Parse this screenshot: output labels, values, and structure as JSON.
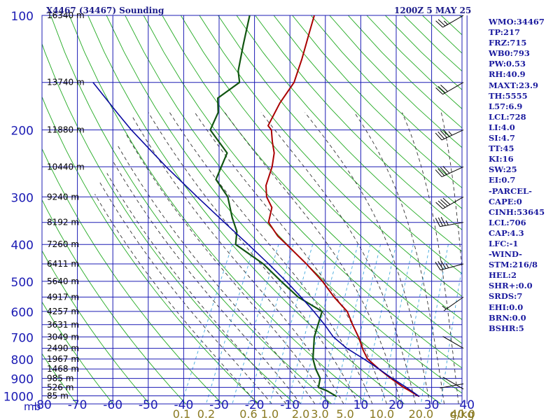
{
  "title": "X4467 (34467) Sounding",
  "timestamp": "1200Z  5 MAY 25",
  "colors": {
    "grid": "#1c1cb4",
    "dry_adiabat": "#22aa22",
    "moist_adiabat": "#333333",
    "mixing_ratio": "#44aadd",
    "temperature": "#aa0000",
    "dewpoint": "#115511",
    "parcel": "#0a0aa0",
    "axis_text": "#1c1cb4",
    "mixing_text": "#8a7a22"
  },
  "chart_data": {
    "type": "line",
    "pressure_labels": [
      "100",
      "200",
      "300",
      "400",
      "500",
      "600",
      "700",
      "800",
      "900",
      "1000"
    ],
    "pressure_unit": "mb",
    "temperature_labels": [
      "-80",
      "-70",
      "-60",
      "-50",
      "-40",
      "-30",
      "-20",
      "-10",
      "0",
      "10",
      "20",
      "30",
      "40"
    ],
    "mixing_ratio_labels": [
      "0.1",
      "0.2",
      "0.6",
      "1.0",
      "2.0",
      "3.0",
      "5.0",
      "10.0",
      "20.0",
      "40.0"
    ],
    "mixing_ratio_unit": "g/kg",
    "mixing_ratio_values": [
      0.1,
      0.2,
      0.6,
      1.0,
      2.0,
      3.0,
      5.0,
      10.0,
      20.0,
      40.0
    ],
    "height_labels": [
      {
        "p": 100,
        "label": "16340 m"
      },
      {
        "p": 150,
        "label": "13740 m"
      },
      {
        "p": 200,
        "label": "11880 m"
      },
      {
        "p": 250,
        "label": "10440 m"
      },
      {
        "p": 300,
        "label": "9240 m"
      },
      {
        "p": 350,
        "label": "8192 m"
      },
      {
        "p": 400,
        "label": "7260 m"
      },
      {
        "p": 450,
        "label": "6411 m"
      },
      {
        "p": 500,
        "label": "5640 m"
      },
      {
        "p": 550,
        "label": "4917 m"
      },
      {
        "p": 600,
        "label": "4257 m"
      },
      {
        "p": 650,
        "label": "3631 m"
      },
      {
        "p": 700,
        "label": "3049 m"
      },
      {
        "p": 750,
        "label": "2490 m"
      },
      {
        "p": 800,
        "label": "1967 m"
      },
      {
        "p": 850,
        "label": "1468 m"
      },
      {
        "p": 900,
        "label": "985 m"
      },
      {
        "p": 950,
        "label": "526 m"
      },
      {
        "p": 1000,
        "label": "85 m"
      }
    ],
    "series": [
      {
        "name": "temperature",
        "points": [
          [
            1004,
            24
          ],
          [
            995,
            23
          ],
          [
            970,
            20.5
          ],
          [
            950,
            18.3
          ],
          [
            900,
            13.5
          ],
          [
            850,
            8.8
          ],
          [
            800,
            4.2
          ],
          [
            760,
            1.8
          ],
          [
            700,
            -1.5
          ],
          [
            650,
            -4.9
          ],
          [
            600,
            -8.3
          ],
          [
            550,
            -14.0
          ],
          [
            500,
            -19.5
          ],
          [
            450,
            -26.5
          ],
          [
            400,
            -34.8
          ],
          [
            380,
            -38.5
          ],
          [
            350,
            -43.0
          ],
          [
            320,
            -44.2
          ],
          [
            300,
            -47.2
          ],
          [
            280,
            -49.0
          ],
          [
            250,
            -50.0
          ],
          [
            230,
            -51.4
          ],
          [
            215,
            -53.5
          ],
          [
            200,
            -55.5
          ],
          [
            195,
            -57.0
          ],
          [
            170,
            -57.0
          ],
          [
            150,
            -56.0
          ],
          [
            130,
            -57.2
          ],
          [
            110,
            -59.0
          ],
          [
            100,
            -60.0
          ]
        ]
      },
      {
        "name": "dewpoint",
        "points": [
          [
            1004,
            1
          ],
          [
            970,
            -2.5
          ],
          [
            950,
            -5.4
          ],
          [
            900,
            -6.2
          ],
          [
            850,
            -8.8
          ],
          [
            800,
            -11.0
          ],
          [
            700,
            -13.8
          ],
          [
            600,
            -15.3
          ],
          [
            550,
            -24.0
          ],
          [
            500,
            -31.0
          ],
          [
            450,
            -38.5
          ],
          [
            400,
            -49.0
          ],
          [
            370,
            -50.5
          ],
          [
            340,
            -53.8
          ],
          [
            300,
            -58.0
          ],
          [
            270,
            -63.8
          ],
          [
            230,
            -64.5
          ],
          [
            200,
            -72.5
          ],
          [
            180,
            -72.8
          ],
          [
            165,
            -75.0
          ],
          [
            150,
            -71.2
          ],
          [
            140,
            -73.2
          ],
          [
            120,
            -75.5
          ],
          [
            100,
            -78.0
          ]
        ]
      },
      {
        "name": "parcel",
        "points": [
          [
            1004,
            24
          ],
          [
            950,
            19.1
          ],
          [
            900,
            13.9
          ],
          [
            850,
            8.8
          ],
          [
            810,
            4.3
          ],
          [
            800,
            3.2
          ],
          [
            750,
            -3.1
          ],
          [
            700,
            -8.5
          ],
          [
            650,
            -12.7
          ],
          [
            600,
            -17.6
          ],
          [
            550,
            -23.2
          ],
          [
            500,
            -29.6
          ],
          [
            450,
            -37.0
          ],
          [
            400,
            -45.5
          ],
          [
            350,
            -55.3
          ],
          [
            300,
            -66.5
          ],
          [
            250,
            -79.5
          ],
          [
            200,
            -94.5
          ],
          [
            180,
            -101.0
          ],
          [
            150,
            -112.0
          ]
        ]
      }
    ],
    "wind_barbs": [
      {
        "p": 100,
        "dir": 240,
        "spd": 25
      },
      {
        "p": 150,
        "dir": 240,
        "spd": 30
      },
      {
        "p": 200,
        "dir": 245,
        "spd": 45
      },
      {
        "p": 250,
        "dir": 245,
        "spd": 40
      },
      {
        "p": 300,
        "dir": 240,
        "spd": 40
      },
      {
        "p": 350,
        "dir": 260,
        "spd": 35
      },
      {
        "p": 450,
        "dir": 255,
        "spd": 35
      },
      {
        "p": 550,
        "dir": 235,
        "spd": 5
      },
      {
        "p": 750,
        "dir": 300,
        "spd": 0
      },
      {
        "p": 930,
        "dir": 260,
        "spd": 0
      },
      {
        "p": 960,
        "dir": 300,
        "spd": 0
      }
    ]
  },
  "indices": [
    "WMO:34467",
    "TP:217",
    "FRZ:715",
    "WB0:793",
    "PW:0.53",
    "RH:40.9",
    "MAXT:23.9",
    "TH:5555",
    "L57:6.9",
    "LCL:728",
    "LI:4.0",
    "SI:4.7",
    "TT:45",
    "KI:16",
    "SW:25",
    "EI:0.7",
    "-PARCEL-",
    "CAPE:0",
    "CINH:53645",
    "LCL:706",
    "CAP:4.3",
    "LFC:-1",
    "-WIND-",
    "STM:216/8",
    "HEL:2",
    "SHR+:0.0",
    "SRDS:7",
    "EHI:0.0",
    "BRN:0.0",
    "BSHR:5"
  ]
}
